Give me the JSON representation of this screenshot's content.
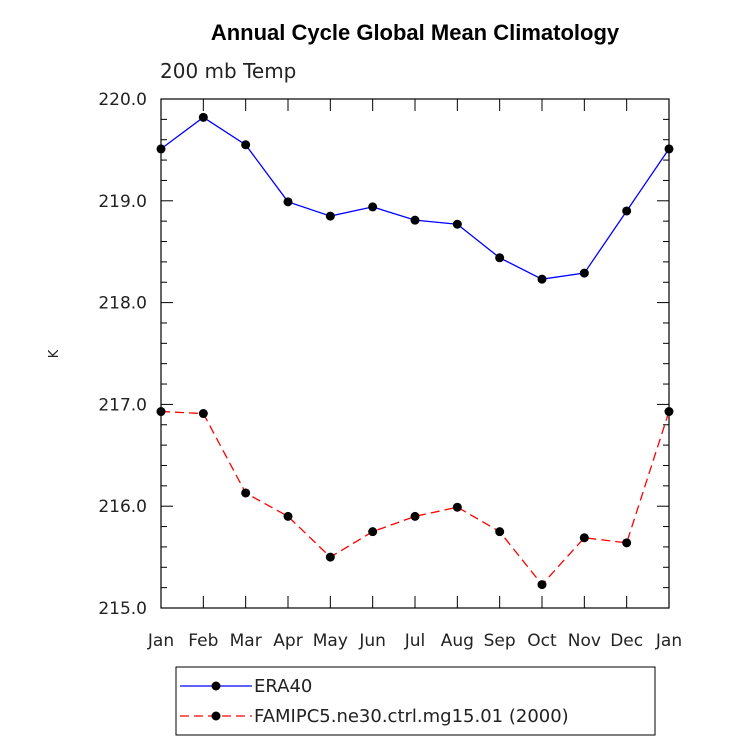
{
  "chart_data": {
    "type": "line",
    "title": "Annual Cycle Global Mean Climatology",
    "subtitle": "200 mb Temp",
    "xlabel": "",
    "ylabel": "K",
    "categories": [
      "Jan",
      "Feb",
      "Mar",
      "Apr",
      "May",
      "Jun",
      "Jul",
      "Aug",
      "Sep",
      "Oct",
      "Nov",
      "Dec",
      "Jan"
    ],
    "ylim": [
      215.0,
      220.0
    ],
    "yticks": [
      "215.0",
      "216.0",
      "217.0",
      "218.0",
      "219.0",
      "220.0"
    ],
    "grid": false,
    "legend_placement": "bottom",
    "series": [
      {
        "name": "ERA40",
        "color": "#0000ff",
        "line_style": "solid",
        "marker": "filled-circle",
        "values": [
          219.51,
          219.82,
          219.55,
          218.99,
          218.85,
          218.94,
          218.81,
          218.77,
          218.44,
          218.23,
          218.29,
          218.9,
          219.51
        ]
      },
      {
        "name": "FAMIPC5.ne30.ctrl.mg15.01 (2000)",
        "color": "#ff0000",
        "line_style": "dashed",
        "marker": "filled-circle",
        "values": [
          216.93,
          216.91,
          216.13,
          215.9,
          215.5,
          215.75,
          215.9,
          215.99,
          215.75,
          215.23,
          215.69,
          215.64,
          216.93
        ]
      }
    ]
  }
}
